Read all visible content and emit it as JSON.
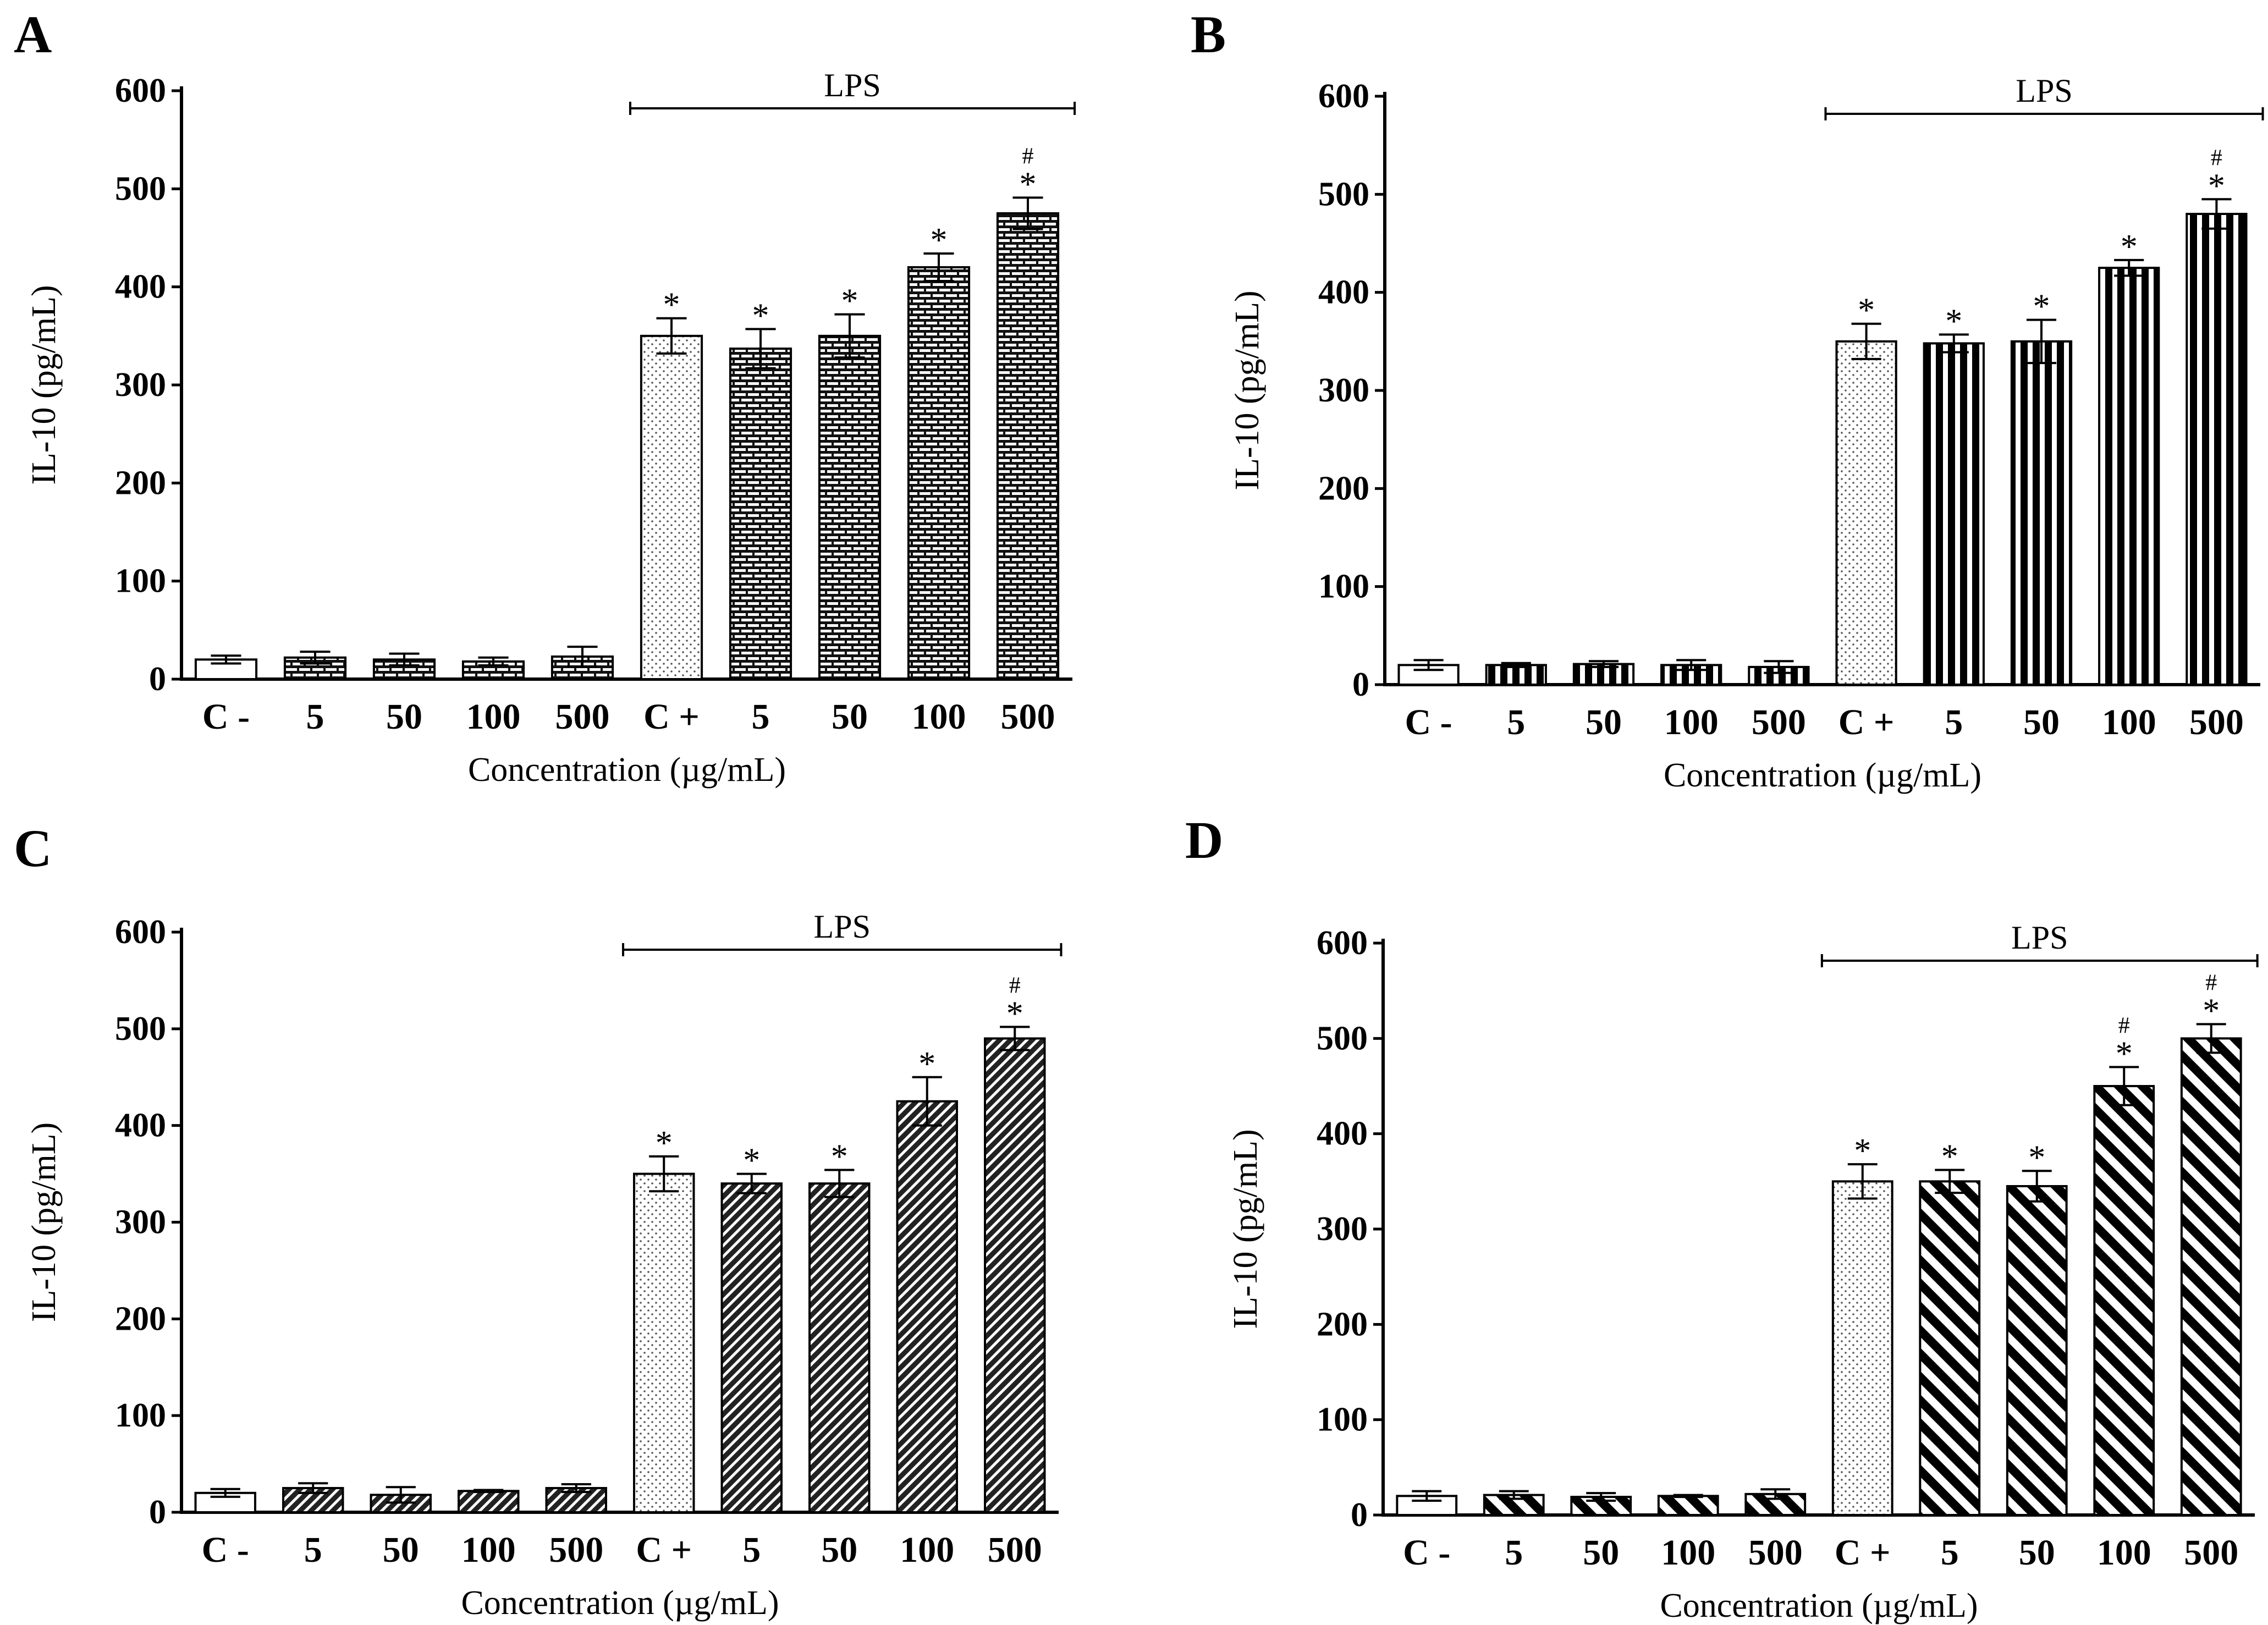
{
  "figure": {
    "categories": [
      "C -",
      "5",
      "50",
      "100",
      "500",
      "C +",
      "5",
      "50",
      "100",
      "500"
    ],
    "xlabel": "Concentration (µg/mL)",
    "ylabel": "IL-10 (pg/mL)",
    "bracket_label": "LPS",
    "star_symbol": "*",
    "hash_symbol": "#"
  },
  "chart_data": [
    {
      "type": "bar",
      "panel": "A",
      "title": "",
      "xlabel": "Concentration (µg/mL)",
      "ylabel": "IL-10 (pg/mL)",
      "ylim": [
        0,
        600
      ],
      "yticks": [
        0,
        100,
        200,
        300,
        400,
        500,
        600
      ],
      "categories": [
        "C -",
        "5",
        "50",
        "100",
        "500",
        "C +",
        "5",
        "50",
        "100",
        "500"
      ],
      "values": [
        20,
        22,
        20,
        18,
        23,
        350,
        337,
        350,
        420,
        475
      ],
      "errors": [
        4,
        6,
        6,
        4,
        10,
        18,
        20,
        22,
        14,
        16
      ],
      "significance": [
        "",
        "",
        "",
        "",
        "",
        "*",
        "*",
        "*",
        "*",
        "*#"
      ],
      "bracket": {
        "label": "LPS",
        "from_category_index": 5,
        "to_category_index": 9
      },
      "pattern": "brick"
    },
    {
      "type": "bar",
      "panel": "B",
      "title": "",
      "xlabel": "Concentration (µg/mL)",
      "ylabel": "IL-10 (pg/mL)",
      "ylim": [
        0,
        600
      ],
      "yticks": [
        0,
        100,
        200,
        300,
        400,
        500,
        600
      ],
      "categories": [
        "C -",
        "5",
        "50",
        "100",
        "500",
        "C +",
        "5",
        "50",
        "100",
        "500"
      ],
      "values": [
        20,
        20,
        21,
        20,
        18,
        350,
        348,
        350,
        425,
        480
      ],
      "errors": [
        5,
        2,
        3,
        5,
        6,
        18,
        9,
        22,
        8,
        15
      ],
      "significance": [
        "",
        "",
        "",
        "",
        "",
        "*",
        "*",
        "*",
        "*",
        "*#"
      ],
      "bracket": {
        "label": "LPS",
        "from_category_index": 5,
        "to_category_index": 9
      },
      "pattern": "vertical-stripes"
    },
    {
      "type": "bar",
      "panel": "C",
      "title": "",
      "xlabel": "Concentration (µg/mL)",
      "ylabel": "IL-10 (pg/mL)",
      "ylim": [
        0,
        600
      ],
      "yticks": [
        0,
        100,
        200,
        300,
        400,
        500,
        600
      ],
      "categories": [
        "C -",
        "5",
        "50",
        "100",
        "500",
        "C +",
        "5",
        "50",
        "100",
        "500"
      ],
      "values": [
        20,
        25,
        18,
        22,
        25,
        350,
        340,
        340,
        425,
        490
      ],
      "errors": [
        4,
        5,
        8,
        1,
        4,
        18,
        10,
        14,
        25,
        12
      ],
      "significance": [
        "",
        "",
        "",
        "",
        "",
        "*",
        "*",
        "*",
        "*",
        "*#"
      ],
      "bracket": {
        "label": "LPS",
        "from_category_index": 5,
        "to_category_index": 9
      },
      "pattern": "fine-diagonal"
    },
    {
      "type": "bar",
      "panel": "D",
      "title": "",
      "xlabel": "Concentration (µg/mL)",
      "ylabel": "IL-10 (pg/mL)",
      "ylim": [
        0,
        600
      ],
      "yticks": [
        0,
        100,
        200,
        300,
        400,
        500,
        600
      ],
      "categories": [
        "C -",
        "5",
        "50",
        "100",
        "500",
        "C +",
        "5",
        "50",
        "100",
        "500"
      ],
      "values": [
        20,
        21,
        19,
        20,
        22,
        350,
        350,
        345,
        450,
        500
      ],
      "errors": [
        5,
        4,
        4,
        1,
        5,
        18,
        12,
        16,
        20,
        15
      ],
      "significance": [
        "",
        "",
        "",
        "",
        "",
        "*",
        "*",
        "*",
        "*#",
        "*#"
      ],
      "bracket": {
        "label": "LPS",
        "from_category_index": 5,
        "to_category_index": 9
      },
      "pattern": "thick-diagonal"
    }
  ]
}
